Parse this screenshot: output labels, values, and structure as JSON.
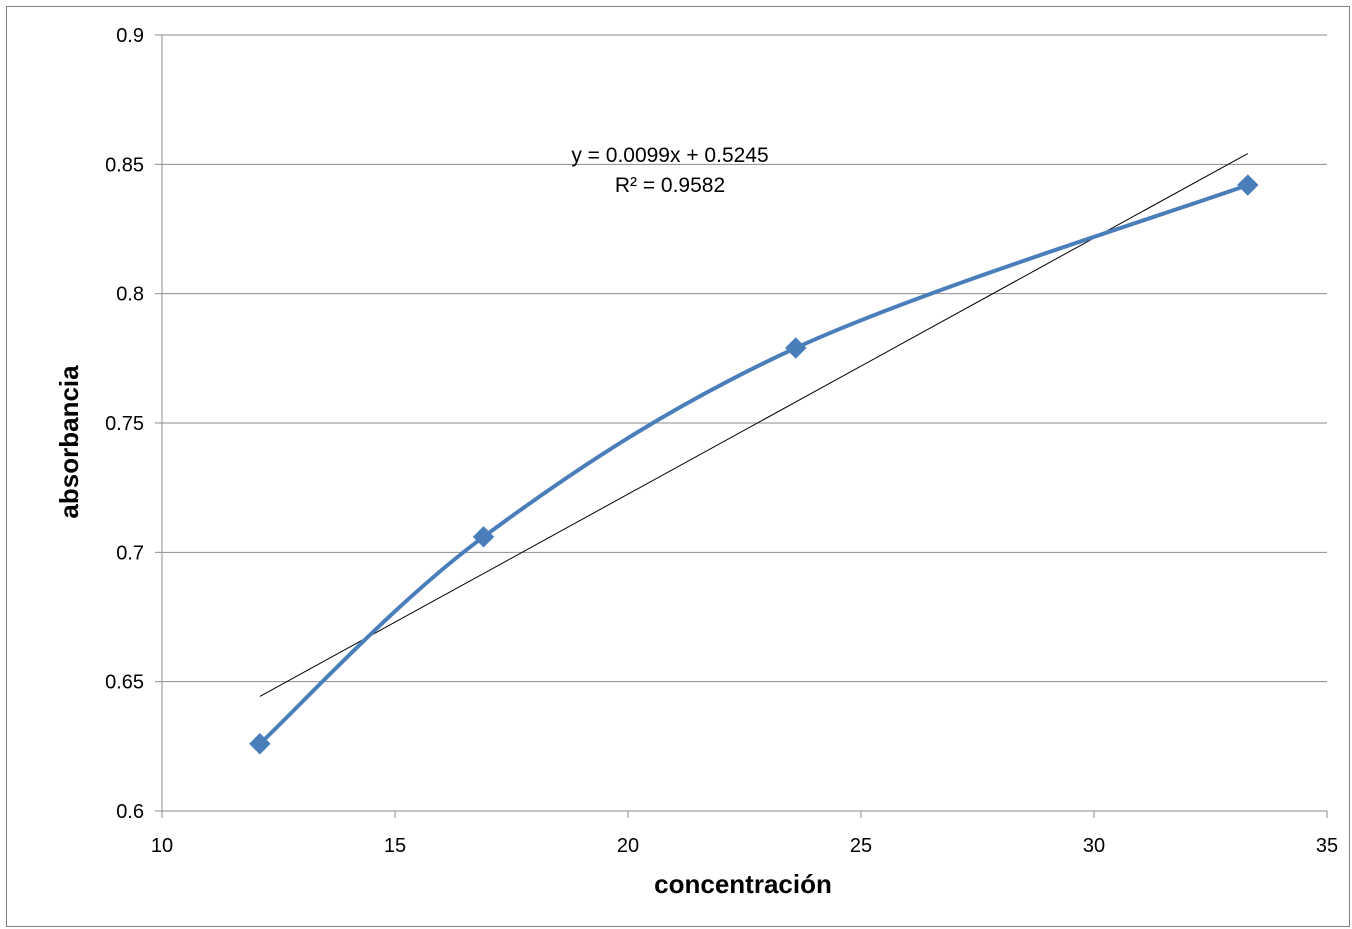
{
  "chart_data": {
    "type": "scatter",
    "xlabel": "concentración",
    "ylabel": "absorbancia",
    "xlim": [
      10,
      35
    ],
    "ylim": [
      0.6,
      0.9
    ],
    "x_ticks": [
      "10",
      "15",
      "20",
      "25",
      "30",
      "35"
    ],
    "y_ticks": [
      "0.6",
      "0.65",
      "0.7",
      "0.75",
      "0.8",
      "0.85",
      "0.9"
    ],
    "grid": "horizontal",
    "series": [
      {
        "x": [
          12.1,
          16.9,
          23.6,
          33.3
        ],
        "y": [
          0.626,
          0.706,
          0.779,
          0.842
        ],
        "color": "#4a7ebb",
        "marker": "diamond",
        "line": "smoothed"
      }
    ],
    "trendline": {
      "type": "linear",
      "slope": 0.0099,
      "intercept": 0.5245,
      "x_range": [
        12.1,
        33.3
      ],
      "color": "#000000",
      "equation": "y = 0.0099x + 0.5245",
      "r_squared": "R² = 0.9582"
    }
  }
}
